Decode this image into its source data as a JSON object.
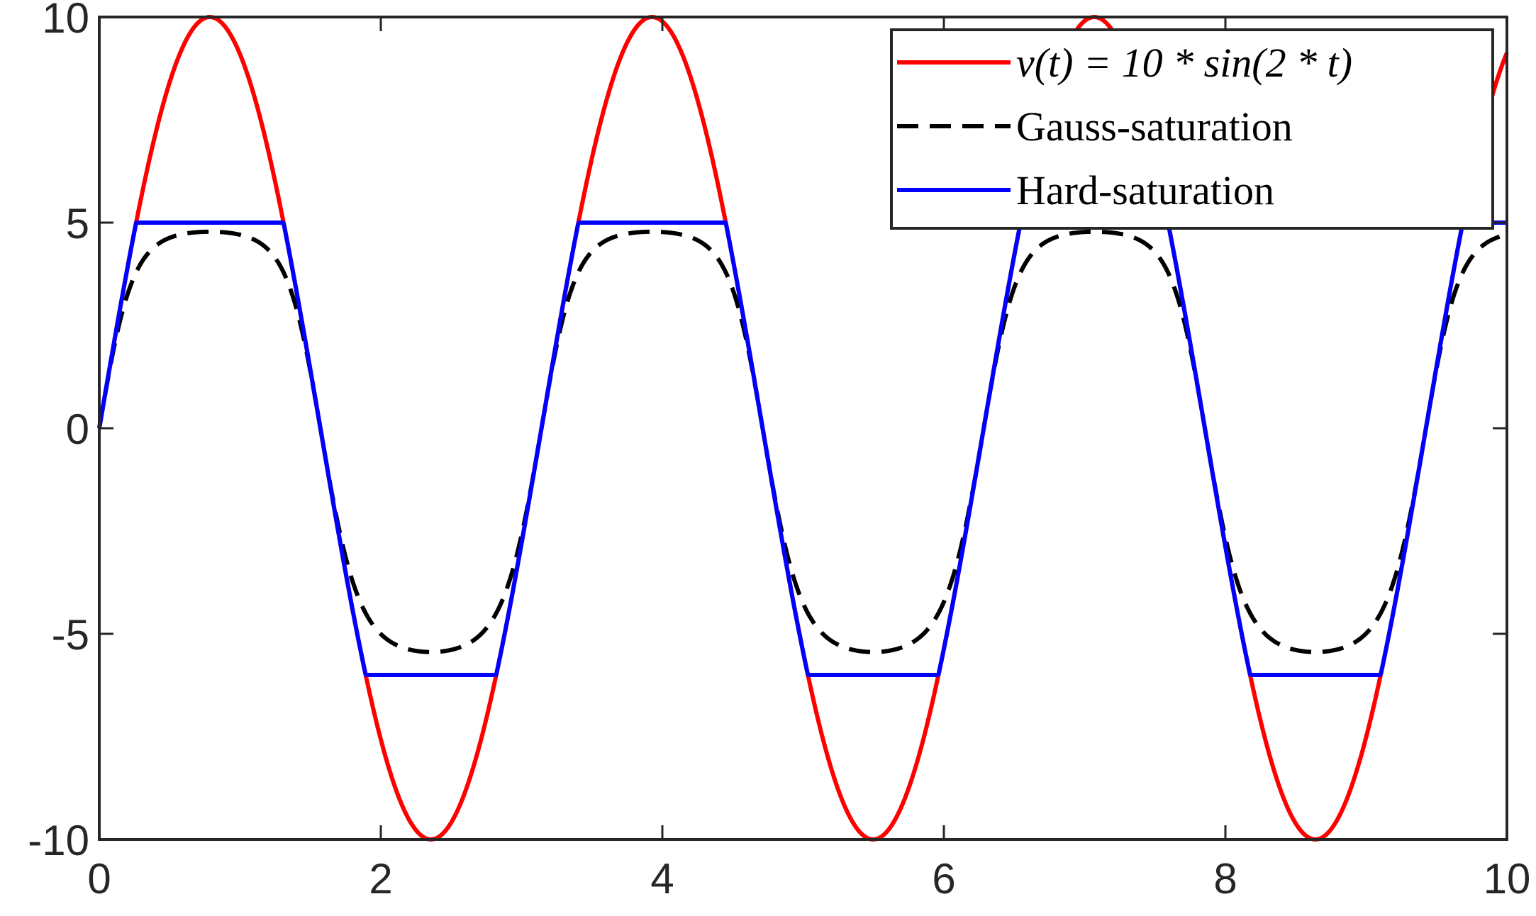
{
  "chart_data": {
    "type": "line",
    "title": "",
    "xlabel": "",
    "ylabel": "",
    "xlim": [
      0,
      10
    ],
    "ylim": [
      -10,
      10
    ],
    "xticks": [
      0,
      2,
      4,
      6,
      8,
      10
    ],
    "yticks": [
      -10,
      -5,
      0,
      5,
      10
    ],
    "xtick_labels": [
      "0",
      "2",
      "4",
      "6",
      "8",
      "10"
    ],
    "ytick_labels": [
      "-10",
      "-5",
      "0",
      "5",
      "10"
    ],
    "grid": false,
    "legend_position": "top-right",
    "series": [
      {
        "name": "v(t) = 10 * sin(2 * t)",
        "color": "#ff0000",
        "style": "solid",
        "function": "10*sin(2*t)"
      },
      {
        "name": "Gauss-saturation",
        "color": "#000000",
        "style": "dashed",
        "upper_limit": 4.95,
        "lower_limit": -5.8
      },
      {
        "name": "Hard-saturation",
        "color": "#0000ff",
        "style": "solid",
        "upper_limit": 5,
        "lower_limit": -6
      }
    ]
  }
}
